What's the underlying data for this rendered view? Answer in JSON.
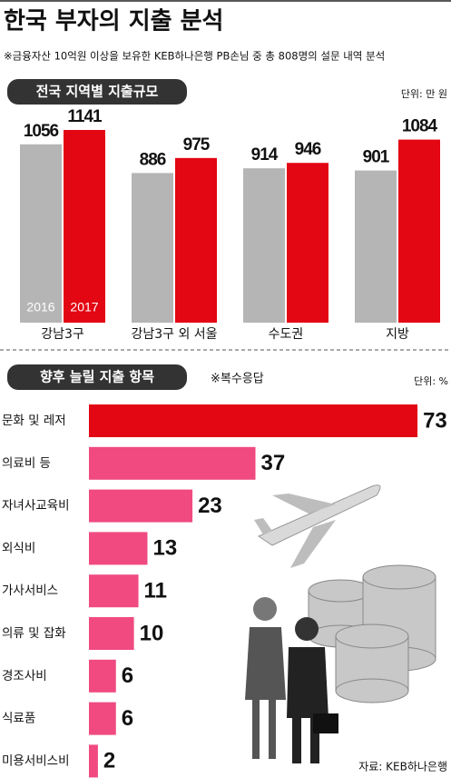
{
  "title": "한국 부자의 지출 분석",
  "subtitle": "※금융자산 10억원 이상을 보유한 KEB하나은행 PB손님 중 총 808명의 설문 내역 분석",
  "chart_data": [
    {
      "type": "bar",
      "title": "전국 지역별 지출규모",
      "unit_label": "단위: 만 원",
      "categories": [
        "강남3구",
        "강남3구 외 서울",
        "수도권",
        "지방"
      ],
      "series": [
        {
          "name": "2016",
          "color": "#b5b5b5",
          "values": [
            1056,
            886,
            914,
            901
          ]
        },
        {
          "name": "2017",
          "color": "#e30613",
          "values": [
            1141,
            975,
            946,
            1084
          ]
        }
      ]
    },
    {
      "type": "hbar",
      "title": "향후 늘릴 지출 항목",
      "note": "※복수응답",
      "unit_label": "단위: %",
      "categories": [
        "문화 및 레저",
        "의료비 등",
        "자녀사교육비",
        "외식비",
        "가사서비스",
        "의류 및 잡화",
        "경조사비",
        "식료품",
        "미용서비스비"
      ],
      "values": [
        73,
        37,
        23,
        13,
        11,
        10,
        6,
        6,
        2
      ],
      "colors": [
        "#e30613",
        "#f04a80",
        "#f04a80",
        "#f04a80",
        "#f04a80",
        "#f04a80",
        "#f04a80",
        "#f04a80",
        "#f04a80"
      ]
    }
  ],
  "source": "자료: KEB하나은행"
}
